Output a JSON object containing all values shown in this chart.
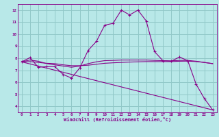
{
  "background_color": "#b8e8e8",
  "grid_color": "#90c8c8",
  "line_color": "#880088",
  "xlim": [
    -0.5,
    23.5
  ],
  "ylim": [
    3.5,
    12.5
  ],
  "xtick_labels": [
    "0",
    "1",
    "2",
    "3",
    "4",
    "5",
    "6",
    "7",
    "8",
    "9",
    "10",
    "11",
    "12",
    "13",
    "14",
    "15",
    "16",
    "17",
    "18",
    "19",
    "20",
    "21",
    "22",
    "23"
  ],
  "xtick_vals": [
    0,
    1,
    2,
    3,
    4,
    5,
    6,
    7,
    8,
    9,
    10,
    11,
    12,
    13,
    14,
    15,
    16,
    17,
    18,
    19,
    20,
    21,
    22,
    23
  ],
  "ytick_vals": [
    4,
    5,
    6,
    7,
    8,
    9,
    10,
    11,
    12
  ],
  "xlabel": "Windchill (Refroidissement éolien,°C)",
  "series0": {
    "x": [
      0,
      1,
      2,
      3,
      4,
      5,
      6,
      7,
      8,
      9,
      10,
      11,
      12,
      13,
      14,
      15,
      16,
      17,
      18,
      19,
      20,
      21,
      22,
      23
    ],
    "y": [
      7.7,
      8.05,
      7.25,
      7.3,
      7.3,
      6.65,
      6.35,
      7.2,
      8.65,
      9.4,
      10.75,
      10.9,
      12.0,
      11.6,
      12.0,
      11.1,
      8.55,
      7.8,
      7.75,
      8.1,
      7.8,
      5.85,
      4.65,
      3.7
    ]
  },
  "series1": {
    "x": [
      0,
      1,
      2,
      3,
      4,
      5,
      6,
      7,
      8,
      9,
      10,
      11,
      12,
      13,
      14,
      15,
      16,
      17,
      18,
      19,
      20,
      21,
      22,
      23
    ],
    "y": [
      7.7,
      7.85,
      7.75,
      7.55,
      7.45,
      7.35,
      7.25,
      7.35,
      7.55,
      7.7,
      7.8,
      7.82,
      7.85,
      7.85,
      7.85,
      7.85,
      7.82,
      7.8,
      7.78,
      7.82,
      7.82,
      7.75,
      7.65,
      7.55
    ]
  },
  "series2": {
    "x": [
      0,
      1,
      2,
      3,
      4,
      5,
      6,
      7,
      8,
      9,
      10,
      11,
      12,
      13,
      14,
      15,
      16,
      17,
      18,
      19,
      20,
      21,
      22,
      23
    ],
    "y": [
      7.7,
      7.72,
      7.65,
      7.58,
      7.55,
      7.45,
      7.38,
      7.38,
      7.42,
      7.5,
      7.58,
      7.62,
      7.65,
      7.68,
      7.7,
      7.72,
      7.72,
      7.72,
      7.72,
      7.75,
      7.76,
      7.72,
      7.65,
      7.55
    ]
  },
  "series3": {
    "x": [
      0,
      23
    ],
    "y": [
      7.7,
      3.7
    ]
  }
}
